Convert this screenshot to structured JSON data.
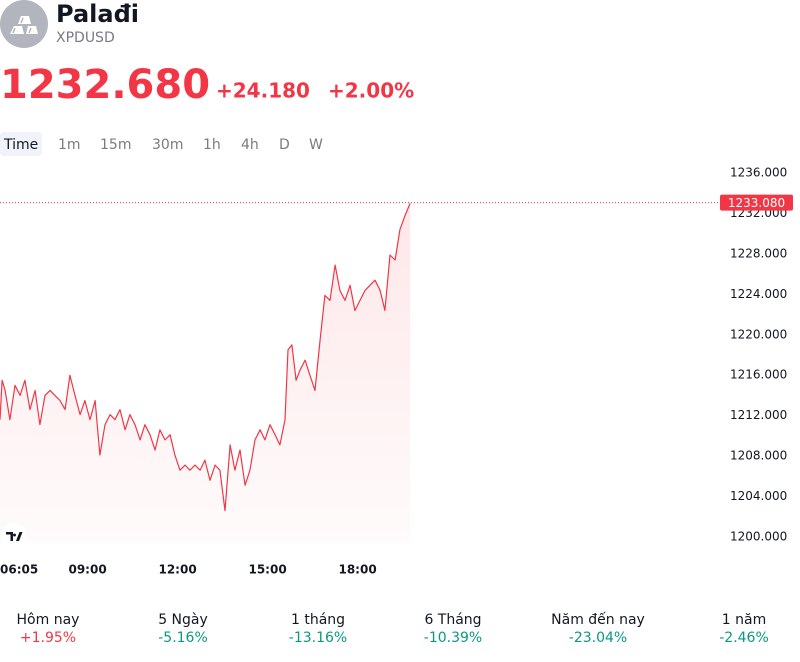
{
  "header": {
    "name": "Palađi",
    "symbol": "XPDUSD",
    "price": "1232.680",
    "change": "+24.180",
    "change_percent": "+2.00%"
  },
  "timeframes": [
    "Time",
    "1m",
    "15m",
    "30m",
    "1h",
    "4h",
    "D",
    "W"
  ],
  "selected_timeframe": 0,
  "chart_data": {
    "type": "line",
    "color": "#f23645",
    "x": [
      6.08,
      6.15,
      6.25,
      6.41,
      6.58,
      6.75,
      6.91,
      7.08,
      7.25,
      7.41,
      7.58,
      7.75,
      7.91,
      8.08,
      8.25,
      8.41,
      8.58,
      8.75,
      8.91,
      9.08,
      9.25,
      9.41,
      9.58,
      9.75,
      9.91,
      10.08,
      10.25,
      10.41,
      10.58,
      10.75,
      10.91,
      11.08,
      11.25,
      11.41,
      11.58,
      11.75,
      11.91,
      12.08,
      12.25,
      12.41,
      12.58,
      12.75,
      12.91,
      13.08,
      13.25,
      13.41,
      13.58,
      13.75,
      13.91,
      14.08,
      14.25,
      14.41,
      14.58,
      14.75,
      14.91,
      15.08,
      15.25,
      15.41,
      15.58,
      15.68,
      15.81,
      15.95,
      16.08,
      16.25,
      16.41,
      16.58,
      16.75,
      16.91,
      17.08,
      17.25,
      17.41,
      17.58,
      17.75,
      17.91,
      18.08,
      18.25,
      18.41,
      18.58,
      18.75,
      18.91,
      19.08,
      19.25,
      19.41,
      19.58,
      19.75
    ],
    "values": [
      1211.6,
      1215.5,
      1214.5,
      1211.6,
      1215.0,
      1214.0,
      1215.5,
      1212.6,
      1214.5,
      1211.1,
      1214.0,
      1214.5,
      1214.0,
      1213.5,
      1212.6,
      1216.0,
      1214.0,
      1212.1,
      1213.5,
      1211.6,
      1213.5,
      1208.1,
      1211.1,
      1212.1,
      1211.6,
      1212.6,
      1210.6,
      1212.1,
      1211.1,
      1209.6,
      1211.1,
      1210.1,
      1208.6,
      1210.6,
      1209.6,
      1210.1,
      1208.1,
      1206.6,
      1207.1,
      1206.6,
      1207.1,
      1206.6,
      1207.6,
      1205.6,
      1207.1,
      1206.6,
      1202.6,
      1209.1,
      1206.6,
      1208.6,
      1205.1,
      1206.6,
      1209.6,
      1210.6,
      1209.6,
      1211.1,
      1210.1,
      1209.1,
      1211.6,
      1218.5,
      1219.0,
      1215.5,
      1216.5,
      1217.5,
      1216.0,
      1214.5,
      1219.5,
      1223.9,
      1223.4,
      1226.9,
      1224.4,
      1223.4,
      1224.9,
      1222.4,
      1223.4,
      1224.4,
      1224.9,
      1225.4,
      1224.4,
      1222.4,
      1227.9,
      1227.4,
      1230.4,
      1231.8,
      1233.0
    ],
    "xlim": [
      6.08,
      30.08
    ],
    "xticks": [
      {
        "value": 6.08,
        "label": "06:05"
      },
      {
        "value": 9,
        "label": "09:00"
      },
      {
        "value": 12,
        "label": "12:00"
      },
      {
        "value": 15,
        "label": "15:00"
      },
      {
        "value": 18,
        "label": "18:00"
      }
    ],
    "ylim": [
      1198.7,
      1237.3
    ],
    "yticks": [
      {
        "value": 1200,
        "label": "1200.000"
      },
      {
        "value": 1204,
        "label": "1204.000"
      },
      {
        "value": 1208,
        "label": "1208.000"
      },
      {
        "value": 1212,
        "label": "1212.000"
      },
      {
        "value": 1216,
        "label": "1216.000"
      },
      {
        "value": 1220,
        "label": "1220.000"
      },
      {
        "value": 1224,
        "label": "1224.000"
      },
      {
        "value": 1228,
        "label": "1228.000"
      },
      {
        "value": 1232,
        "label": "1232.000"
      },
      {
        "value": 1236,
        "label": "1236.000"
      }
    ],
    "last_value": {
      "value": 1233.08,
      "label": "1233.080"
    }
  },
  "performance": [
    {
      "label": "Hôm nay",
      "value": "+1.95%"
    },
    {
      "label": "5 Ngày",
      "value": "-5.16%"
    },
    {
      "label": "1 tháng",
      "value": "-13.16%"
    },
    {
      "label": "6 Tháng",
      "value": "-10.39%"
    },
    {
      "label": "Năm đến nay",
      "value": "-23.04%"
    },
    {
      "label": "1 năm",
      "value": "-2.46%"
    }
  ],
  "colors": {
    "up": "#f23645",
    "down": "#089981"
  }
}
